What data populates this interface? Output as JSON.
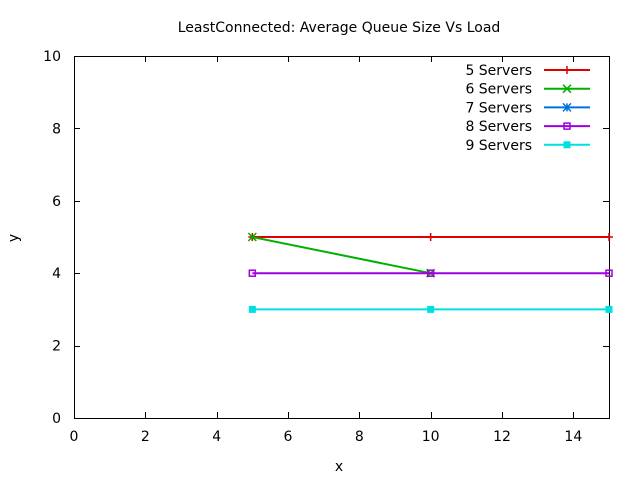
{
  "chart_data": {
    "type": "line",
    "title": "LeastConnected: Average Queue Size Vs Load",
    "xlabel": "x",
    "ylabel": "y",
    "xlim": [
      0,
      15
    ],
    "ylim": [
      0,
      10
    ],
    "x_ticks": [
      0,
      2,
      4,
      6,
      8,
      10,
      12,
      14
    ],
    "y_ticks": [
      0,
      2,
      4,
      6,
      8,
      10
    ],
    "grid": false,
    "legend_position": "top-right",
    "series": [
      {
        "name": "5 Servers",
        "color": "#e00000",
        "marker": "plus",
        "x": [
          5,
          10,
          15
        ],
        "y": [
          5,
          5,
          5
        ]
      },
      {
        "name": "6 Servers",
        "color": "#00b000",
        "marker": "cross",
        "x": [
          5,
          10
        ],
        "y": [
          5,
          4
        ]
      },
      {
        "name": "7 Servers",
        "color": "#0070e0",
        "marker": "star",
        "x": [],
        "y": []
      },
      {
        "name": "8 Servers",
        "color": "#a000e0",
        "marker": "square-open",
        "x": [
          5,
          10,
          15
        ],
        "y": [
          4,
          4,
          4
        ]
      },
      {
        "name": "9 Servers",
        "color": "#00e0e0",
        "marker": "square-filled",
        "x": [
          5,
          10,
          15
        ],
        "y": [
          3,
          3,
          3
        ]
      }
    ]
  }
}
